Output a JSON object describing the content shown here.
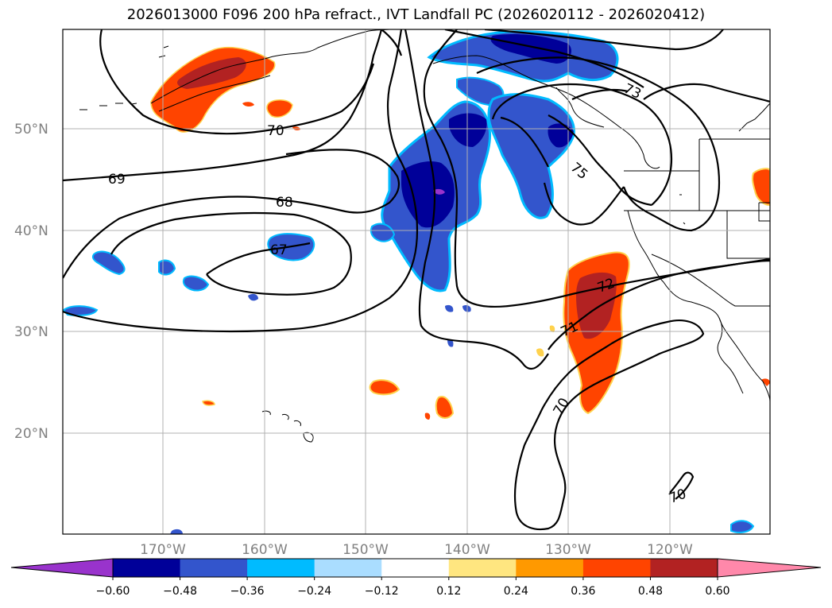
{
  "title": "2026013000 F096 200 hPa refract., IVT Landfall PC (2026020112 - 2026020412)",
  "lat_labels": [
    "50°N",
    "40°N",
    "30°N",
    "20°N"
  ],
  "lon_labels": [
    "170°W",
    "160°W",
    "150°W",
    "140°W",
    "130°W",
    "120°W"
  ],
  "contour_labels": [
    "70",
    "69",
    "68",
    "67",
    "73",
    "75",
    "72",
    "71",
    "70",
    "70"
  ],
  "colorbar": {
    "ticks": [
      "−0.60",
      "−0.48",
      "−0.36",
      "−0.24",
      "−0.12",
      "0.12",
      "0.24",
      "0.36",
      "0.48",
      "0.60"
    ],
    "colors": [
      "#9933cc",
      "#000099",
      "#3355cc",
      "#00bbff",
      "#aaddff",
      "#ffffff",
      "#ffe680",
      "#ff9900",
      "#ff4400",
      "#b22222",
      "#ff88aa"
    ]
  },
  "colors": {
    "neg_strong": "#000099",
    "neg_mid": "#3355cc",
    "neg_light": "#00bbff",
    "pos_light": "#ffe680",
    "pos_mid": "#ff4400",
    "pos_strong": "#b22222",
    "purple": "#9933cc"
  }
}
